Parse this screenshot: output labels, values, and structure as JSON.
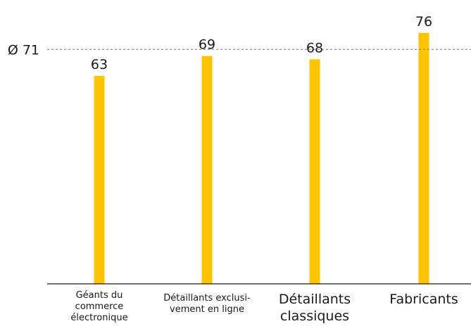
{
  "chart_data": {
    "type": "bar",
    "categories": [
      [
        "Géants du",
        "commerce",
        "électronique"
      ],
      [
        "Détaillants exclusi-",
        "vement en ligne"
      ],
      [
        "Détaillants",
        "classiques"
      ],
      [
        "Fabricants"
      ]
    ],
    "values": [
      63,
      69,
      68,
      76
    ],
    "value_labels": [
      "63",
      "69",
      "68",
      "76"
    ],
    "average": 71,
    "average_label": "Ø 71",
    "ylim": [
      0,
      80
    ],
    "grid": false,
    "colors": {
      "bar": "#fcc500",
      "text": "#1a1a1a",
      "average_line": "#7a7a7a"
    }
  }
}
